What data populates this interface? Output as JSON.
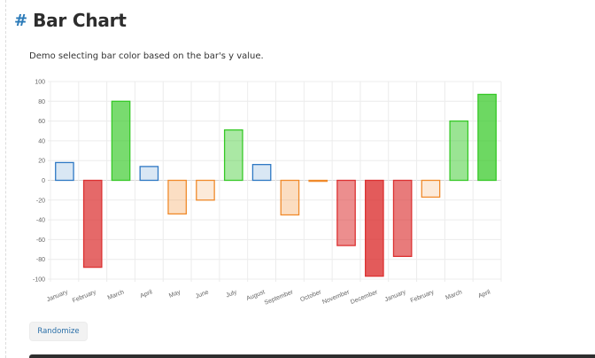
{
  "page": {
    "hash": "#",
    "title": "Bar Chart",
    "description": "Demo selecting bar color based on the bar's y value.",
    "randomize_label": "Randomize"
  },
  "chart_data": {
    "type": "bar",
    "categories": [
      "January",
      "February",
      "March",
      "April",
      "May",
      "June",
      "July",
      "August",
      "September",
      "October",
      "November",
      "December",
      "January",
      "February",
      "March",
      "April"
    ],
    "values": [
      18,
      -88,
      80,
      14,
      -34,
      -20,
      51,
      16,
      -35,
      -1,
      -66,
      -97,
      -77,
      -17,
      60,
      87
    ],
    "ylim": [
      -100,
      100
    ],
    "yticks": [
      100,
      80,
      60,
      40,
      20,
      0,
      -20,
      -40,
      -60,
      -80,
      -100
    ],
    "grid": true,
    "legend": "none",
    "colors": {
      "positive_base": "#36c927",
      "negative_base": "#dc3232",
      "small_positive": "#2e78c4",
      "small_negative": "#f08a2b"
    }
  }
}
